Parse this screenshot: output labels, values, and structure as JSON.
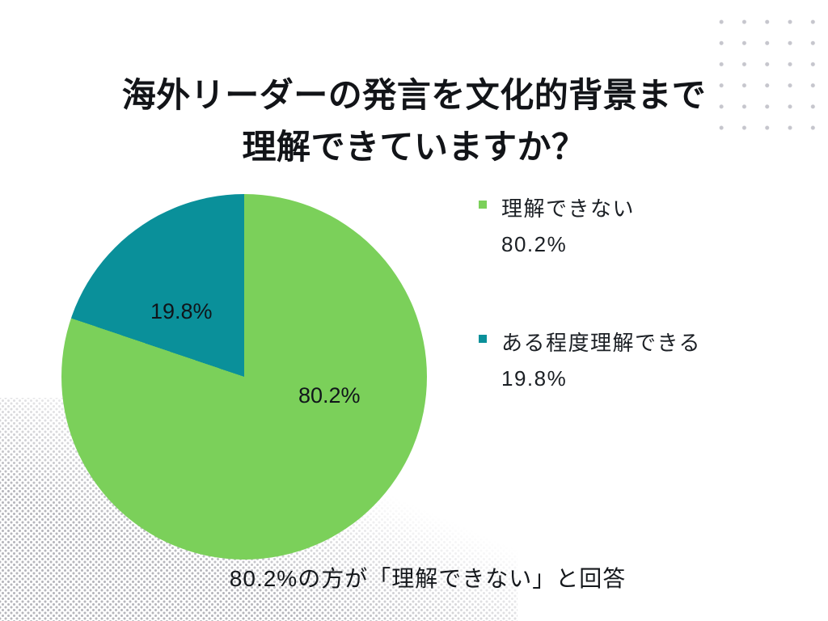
{
  "header": {
    "title_line1": "海外リーダーの発言を文化的背景まで",
    "title_line2": "理解できていますか？"
  },
  "chart_data": {
    "type": "pie",
    "title": "海外リーダーの発言を文化的背景まで理解できていますか？",
    "categories": [
      "理解できない",
      "ある程度理解できる"
    ],
    "values": [
      80.2,
      19.8
    ],
    "unit": "%",
    "start_angle_deg": 0,
    "direction": "clockwise",
    "legend_position": "right",
    "slices": [
      {
        "label": "理解できない",
        "value": 80.2,
        "display": "80.2%",
        "color": "#7bd05a"
      },
      {
        "label": "ある程度理解できる",
        "value": 19.8,
        "display": "19.8%",
        "color": "#0a909a"
      }
    ],
    "annotation": "80.2%の方が「理解できない」と回答"
  },
  "footer": {
    "caption": "80.2%の方が「理解できない」と回答"
  },
  "decor": {
    "dot_grid_color": "#c6c6cd",
    "halftone_color": "#7a7a84",
    "background": "#ffffff"
  }
}
